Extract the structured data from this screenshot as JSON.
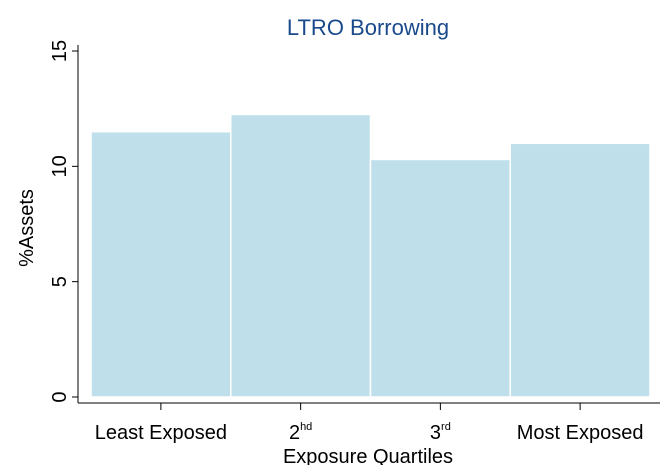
{
  "chart_data": {
    "type": "bar",
    "title": "LTRO Borrowing",
    "xlabel": "Exposure Quartiles",
    "ylabel": "%Assets",
    "categories": [
      {
        "base": "Least Exposed",
        "sup": ""
      },
      {
        "base": "2",
        "sup": "hd"
      },
      {
        "base": "3",
        "sup": "rd"
      },
      {
        "base": "Most Exposed",
        "sup": ""
      }
    ],
    "values": [
      11.5,
      12.25,
      10.3,
      11.0
    ],
    "ylim": [
      0,
      15
    ],
    "yticks": [
      "0",
      "5",
      "10",
      "15"
    ],
    "grid": false,
    "legend": "none",
    "bar_color": "#bfe0ea",
    "title_color": "#1a4a8c"
  }
}
